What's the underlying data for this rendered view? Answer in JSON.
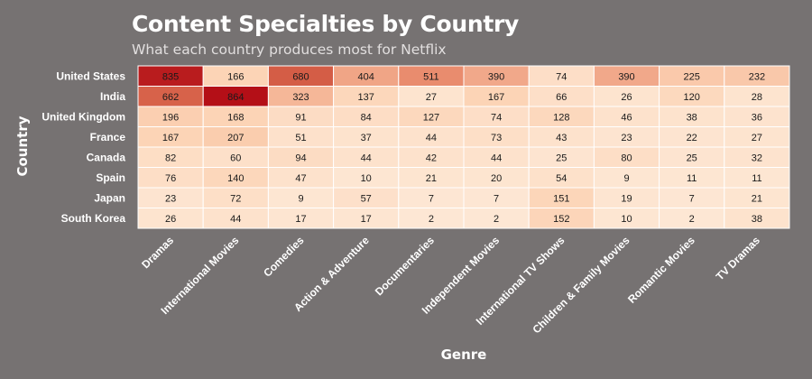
{
  "chart_data": {
    "type": "heatmap",
    "title": "Content Specialties by Country",
    "subtitle": "What each country produces most for Netflix",
    "xlabel": "Genre",
    "ylabel": "Country",
    "rows": [
      "United States",
      "India",
      "United Kingdom",
      "France",
      "Canada",
      "Spain",
      "Japan",
      "South Korea"
    ],
    "columns": [
      "Dramas",
      "International Movies",
      "Comedies",
      "Action & Adventure",
      "Documentaries",
      "Independent Movies",
      "International TV Shows",
      "Children & Family Movies",
      "Romantic Movies",
      "TV Dramas"
    ],
    "values": [
      [
        835,
        166,
        680,
        404,
        511,
        390,
        74,
        390,
        225,
        232
      ],
      [
        662,
        864,
        323,
        137,
        27,
        167,
        66,
        26,
        120,
        28
      ],
      [
        196,
        168,
        91,
        84,
        127,
        74,
        128,
        46,
        38,
        36
      ],
      [
        167,
        207,
        51,
        37,
        44,
        73,
        43,
        23,
        22,
        27
      ],
      [
        82,
        60,
        94,
        44,
        42,
        44,
        25,
        80,
        25,
        32
      ],
      [
        76,
        140,
        47,
        10,
        21,
        20,
        54,
        9,
        11,
        11
      ],
      [
        23,
        72,
        9,
        57,
        7,
        7,
        151,
        19,
        7,
        21
      ],
      [
        26,
        44,
        17,
        17,
        2,
        2,
        152,
        10,
        2,
        38
      ]
    ],
    "colorscale": [
      "#fde7d4",
      "#fcd3b5",
      "#f4b394",
      "#e88a6c",
      "#d35a43",
      "#b40f17"
    ],
    "value_range": [
      0,
      864
    ]
  }
}
